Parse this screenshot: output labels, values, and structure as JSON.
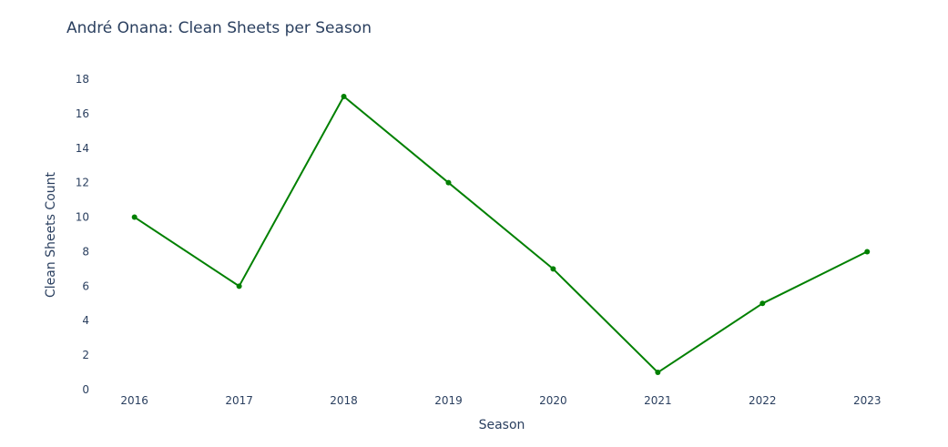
{
  "chart_data": {
    "type": "line",
    "title": "André Onana: Clean Sheets per Season",
    "xlabel": "Season",
    "ylabel": "Clean Sheets Count",
    "categories": [
      "2016",
      "2017",
      "2018",
      "2019",
      "2020",
      "2021",
      "2022",
      "2023"
    ],
    "series": [
      {
        "values": [
          10,
          6,
          17,
          12,
          7,
          1,
          5,
          8
        ],
        "color": "#008000"
      }
    ],
    "ylim": [
      0,
      18
    ],
    "yticks": [
      0,
      2,
      4,
      6,
      8,
      10,
      12,
      14,
      16,
      18
    ],
    "grid": false,
    "markers": true
  }
}
